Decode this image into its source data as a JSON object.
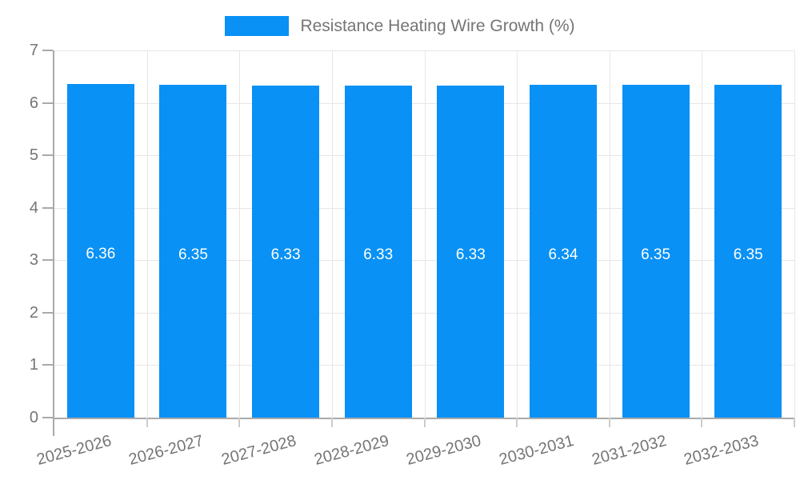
{
  "legend": {
    "label": "Resistance Heating Wire Growth (%)"
  },
  "chart_data": {
    "type": "bar",
    "title": "Resistance Heating Wire Growth (%)",
    "categories": [
      "2025-2026",
      "2026-2027",
      "2027-2028",
      "2028-2029",
      "2029-2030",
      "2030-2031",
      "2031-2032",
      "2032-2033"
    ],
    "values": [
      6.36,
      6.35,
      6.33,
      6.33,
      6.33,
      6.34,
      6.35,
      6.35
    ],
    "value_labels": [
      "6.36",
      "6.35",
      "6.33",
      "6.33",
      "6.33",
      "6.34",
      "6.35",
      "6.35"
    ],
    "xlabel": "",
    "ylabel": "",
    "ylim": [
      0,
      7
    ],
    "yticks": [
      0,
      1,
      2,
      3,
      4,
      5,
      6,
      7
    ],
    "grid": true,
    "legend_position": "top-center",
    "colors": {
      "bar": "#0991F5",
      "bar_value_text": "#ffffff",
      "axis_text": "#757575",
      "grid_line": "#e6e6e6",
      "axis_line": "#aaaaaa",
      "background": "#ffffff"
    }
  }
}
